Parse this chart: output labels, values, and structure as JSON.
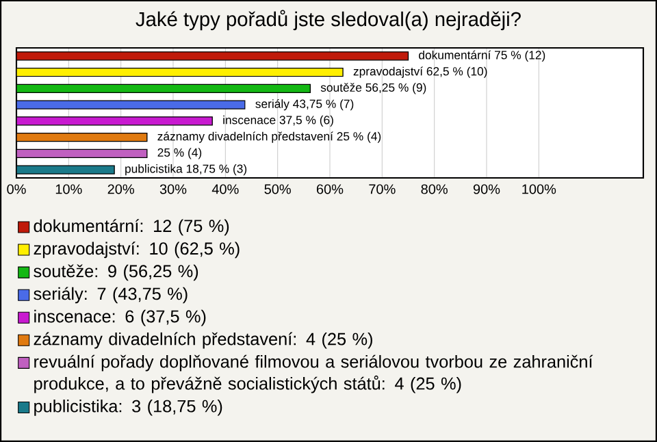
{
  "chart_data": {
    "type": "bar",
    "orientation": "horizontal",
    "title": "Jaké typy pořadů jste sledoval(a) nejraději?",
    "categories": [
      null,
      null,
      null,
      null,
      null,
      null,
      null,
      null
    ],
    "series": [
      {
        "name": "dokumentární: 12 (75 %)",
        "color": "#c01a0a",
        "values": [
          75,
          null,
          null,
          null,
          null,
          null,
          null,
          null
        ],
        "value_labels": [
          "dokumentární 75 % (12)",
          null,
          null,
          null,
          null,
          null,
          null,
          null
        ]
      },
      {
        "name": "zpravodajství: 10 (62,5 %)",
        "color": "#ffef00",
        "values": [
          null,
          62.5,
          null,
          null,
          null,
          null,
          null,
          null
        ],
        "value_labels": [
          null,
          "zpravodajství 62,5 % (10)",
          null,
          null,
          null,
          null,
          null,
          null
        ]
      },
      {
        "name": "soutěže: 9 (56,25 %)",
        "color": "#14b814",
        "values": [
          null,
          null,
          56.25,
          null,
          null,
          null,
          null,
          null
        ],
        "value_labels": [
          null,
          null,
          "soutěže 56,25 % (9)",
          null,
          null,
          null,
          null,
          null
        ]
      },
      {
        "name": "seriály: 7 (43,75 %)",
        "color": "#4a6be8",
        "values": [
          null,
          null,
          null,
          43.75,
          null,
          null,
          null,
          null
        ],
        "value_labels": [
          null,
          null,
          null,
          "seriály 43,75 % (7)",
          null,
          null,
          null,
          null
        ]
      },
      {
        "name": "inscenace: 6 (37,5 %)",
        "color": "#c81ad0",
        "values": [
          null,
          null,
          null,
          null,
          37.5,
          null,
          null,
          null
        ],
        "value_labels": [
          null,
          null,
          null,
          null,
          "inscenace 37,5 % (6)",
          null,
          null,
          null
        ]
      },
      {
        "name": "záznamy divadelních představení: 4 (25 %)",
        "color": "#e07a10",
        "values": [
          null,
          null,
          null,
          null,
          null,
          25,
          null,
          null
        ],
        "value_labels": [
          null,
          null,
          null,
          null,
          null,
          "záznamy divadelních představení 25 % (4)",
          null,
          null
        ]
      },
      {
        "name": "revuální pořady doplňované filmovou a seriálovou tvorbou ze zahraniční produkce, a to převážně socialistických států: 4 (25 %)",
        "color": "#c060c0",
        "values": [
          null,
          null,
          null,
          null,
          null,
          null,
          25,
          null
        ],
        "value_labels": [
          null,
          null,
          null,
          null,
          null,
          null,
          "25 % (4)",
          null
        ]
      },
      {
        "name": "publicistika: 3 (18,75 %)",
        "color": "#1a7a8a",
        "values": [
          null,
          null,
          null,
          null,
          null,
          null,
          null,
          18.75
        ],
        "value_labels": [
          null,
          null,
          null,
          null,
          null,
          null,
          null,
          "publicistika 18,75 % (3)"
        ]
      }
    ],
    "xlim": [
      0,
      120
    ],
    "xticks": [
      {
        "value": 0,
        "label": "0%"
      },
      {
        "value": 10,
        "label": "10%"
      },
      {
        "value": 20,
        "label": "20%"
      },
      {
        "value": 30,
        "label": "30%"
      },
      {
        "value": 40,
        "label": "40%"
      },
      {
        "value": 50,
        "label": "50%"
      },
      {
        "value": 60,
        "label": "60%"
      },
      {
        "value": 70,
        "label": "70%"
      },
      {
        "value": 80,
        "label": "80%"
      },
      {
        "value": 90,
        "label": "90%"
      },
      {
        "value": 100,
        "label": "100%"
      }
    ],
    "grid": "x",
    "legend": "bottom"
  }
}
